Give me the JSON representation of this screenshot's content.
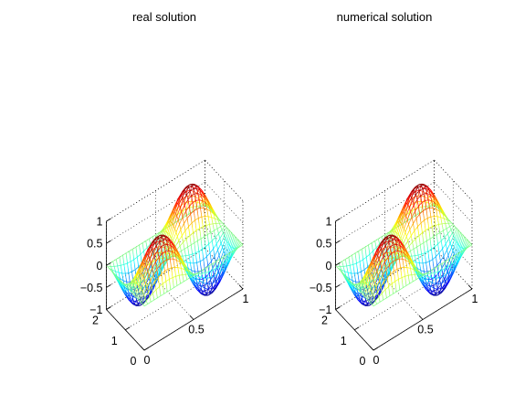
{
  "chart_data": [
    {
      "type": "surface",
      "title": "real solution",
      "function": "sin(2*pi*x)*sin(pi*y)",
      "x_range": [
        0,
        1
      ],
      "y_range": [
        0,
        2
      ],
      "z_range": [
        -1,
        1
      ],
      "x_ticks": [
        0,
        0.5,
        1
      ],
      "y_ticks": [
        0,
        1,
        2
      ],
      "z_ticks": [
        -1,
        -0.5,
        0,
        0.5,
        1
      ],
      "x_tick_labels": [
        "0",
        "0.5",
        "1"
      ],
      "y_tick_labels": [
        "0",
        "1",
        "2"
      ],
      "z_tick_labels": [
        "−1",
        "−0.5",
        "0",
        "0.5",
        "1"
      ],
      "grid": true,
      "colormap": "jet",
      "style": "mesh",
      "mesh_lines": 31
    },
    {
      "type": "surface",
      "title": "numerical solution",
      "function": "sin(2*pi*x)*sin(pi*y)",
      "x_range": [
        0,
        1
      ],
      "y_range": [
        0,
        2
      ],
      "z_range": [
        -1,
        1
      ],
      "x_ticks": [
        0,
        0.5,
        1
      ],
      "y_ticks": [
        0,
        1,
        2
      ],
      "z_ticks": [
        -1,
        -0.5,
        0,
        0.5,
        1
      ],
      "x_tick_labels": [
        "0",
        "0.5",
        "1"
      ],
      "y_tick_labels": [
        "0",
        "1",
        "2"
      ],
      "z_tick_labels": [
        "−1",
        "−0.5",
        "0",
        "0.5",
        "1"
      ],
      "grid": true,
      "colormap": "jet",
      "style": "mesh",
      "mesh_lines": 31
    }
  ]
}
